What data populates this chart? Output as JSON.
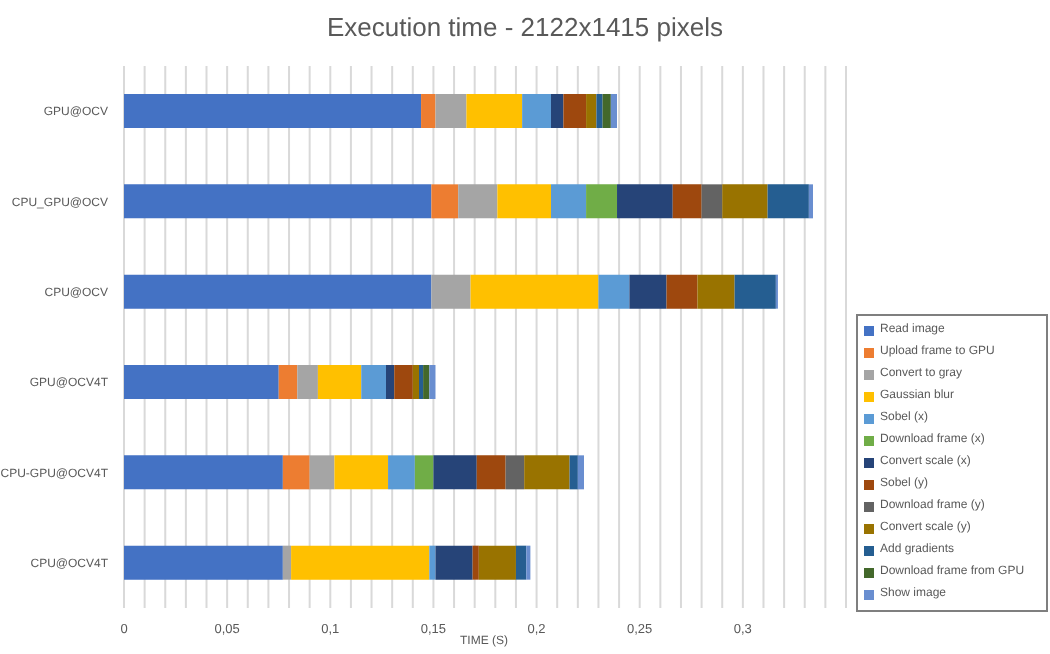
{
  "chart_data": {
    "type": "bar",
    "orientation": "horizontal",
    "stacked": true,
    "title": "Execution time - 2122x1415 pixels",
    "xlabel": "TIME (S)",
    "categories": [
      "GPU@OCV",
      "CPU_GPU@OCV",
      "CPU@OCV",
      "GPU@OCV4T",
      "CPU-GPU@OCV4T",
      "CPU@OCV4T"
    ],
    "series": [
      {
        "name": "Read image",
        "color": "#4472c4",
        "values": [
          0.144,
          0.149,
          0.149,
          0.075,
          0.077,
          0.077
        ]
      },
      {
        "name": "Upload frame to GPU",
        "color": "#ed7d31",
        "values": [
          0.007,
          0.013,
          null,
          0.009,
          0.013,
          null
        ]
      },
      {
        "name": "Convert to gray",
        "color": "#a5a5a5",
        "values": [
          0.015,
          0.019,
          0.019,
          0.01,
          0.012,
          0.004
        ]
      },
      {
        "name": "Gaussian blur",
        "color": "#ffc000",
        "values": [
          0.027,
          0.026,
          0.062,
          0.021,
          0.026,
          0.067
        ]
      },
      {
        "name": "Sobel (x)",
        "color": "#5b9bd5",
        "values": [
          0.014,
          0.017,
          0.015,
          0.012,
          0.013,
          0.003
        ]
      },
      {
        "name": "Download frame (x)",
        "color": "#70ad47",
        "values": [
          null,
          0.015,
          null,
          null,
          0.009,
          null
        ]
      },
      {
        "name": "Convert scale (x)",
        "color": "#264478",
        "values": [
          0.006,
          0.027,
          0.018,
          0.004,
          0.021,
          0.018
        ]
      },
      {
        "name": "Sobel (y)",
        "color": "#9e480e",
        "values": [
          0.011,
          0.014,
          0.015,
          0.009,
          0.014,
          0.003
        ]
      },
      {
        "name": "Download frame (y)",
        "color": "#636363",
        "values": [
          null,
          0.01,
          null,
          null,
          0.009,
          null
        ]
      },
      {
        "name": "Convert scale (y)",
        "color": "#997300",
        "values": [
          0.005,
          0.022,
          0.018,
          0.003,
          0.022,
          0.018
        ]
      },
      {
        "name": "Add gradients",
        "color": "#255e91",
        "values": [
          0.003,
          0.02,
          0.02,
          0.002,
          0.004,
          0.005
        ]
      },
      {
        "name": "Download frame from GPU",
        "color": "#43682b",
        "values": [
          0.004,
          null,
          null,
          0.003,
          null,
          null
        ]
      },
      {
        "name": "Show image",
        "color": "#698ed0",
        "values": [
          0.003,
          0.002,
          0.001,
          0.003,
          0.003,
          0.002
        ]
      }
    ],
    "xlim": [
      0,
      0.35
    ],
    "xticks": [
      0,
      {
        "value": 0.01,
        "label": null
      },
      {
        "value": 0.02,
        "label": null
      },
      {
        "value": 0.03,
        "label": null
      },
      {
        "value": 0.04,
        "label": null
      },
      {
        "value": 0.05,
        "label": "0,05"
      },
      {
        "value": 0.06,
        "label": null
      },
      {
        "value": 0.07,
        "label": null
      },
      {
        "value": 0.08,
        "label": null
      },
      {
        "value": 0.09,
        "label": null
      },
      {
        "value": 0.1,
        "label": "0,1"
      },
      {
        "value": 0.11,
        "label": null
      },
      {
        "value": 0.12,
        "label": null
      },
      {
        "value": 0.13,
        "label": null
      },
      {
        "value": 0.14,
        "label": null
      },
      {
        "value": 0.15,
        "label": "0,15"
      },
      {
        "value": 0.16,
        "label": null
      },
      {
        "value": 0.17,
        "label": null
      },
      {
        "value": 0.18,
        "label": null
      },
      {
        "value": 0.19,
        "label": null
      },
      {
        "value": 0.2,
        "label": "0,2"
      },
      {
        "value": 0.21,
        "label": null
      },
      {
        "value": 0.22,
        "label": null
      },
      {
        "value": 0.23,
        "label": null
      },
      {
        "value": 0.24,
        "label": null
      },
      {
        "value": 0.25,
        "label": "0,25"
      },
      {
        "value": 0.26,
        "label": null
      },
      {
        "value": 0.27,
        "label": null
      },
      {
        "value": 0.28,
        "label": null
      },
      {
        "value": 0.29,
        "label": null
      },
      {
        "value": 0.3,
        "label": "0,3"
      },
      {
        "value": 0.31,
        "label": null
      },
      {
        "value": 0.32,
        "label": null
      },
      {
        "value": 0.33,
        "label": null
      },
      {
        "value": 0.34,
        "label": null
      },
      {
        "value": 0.35,
        "label": null
      }
    ],
    "grid": "x",
    "legend": "right"
  }
}
